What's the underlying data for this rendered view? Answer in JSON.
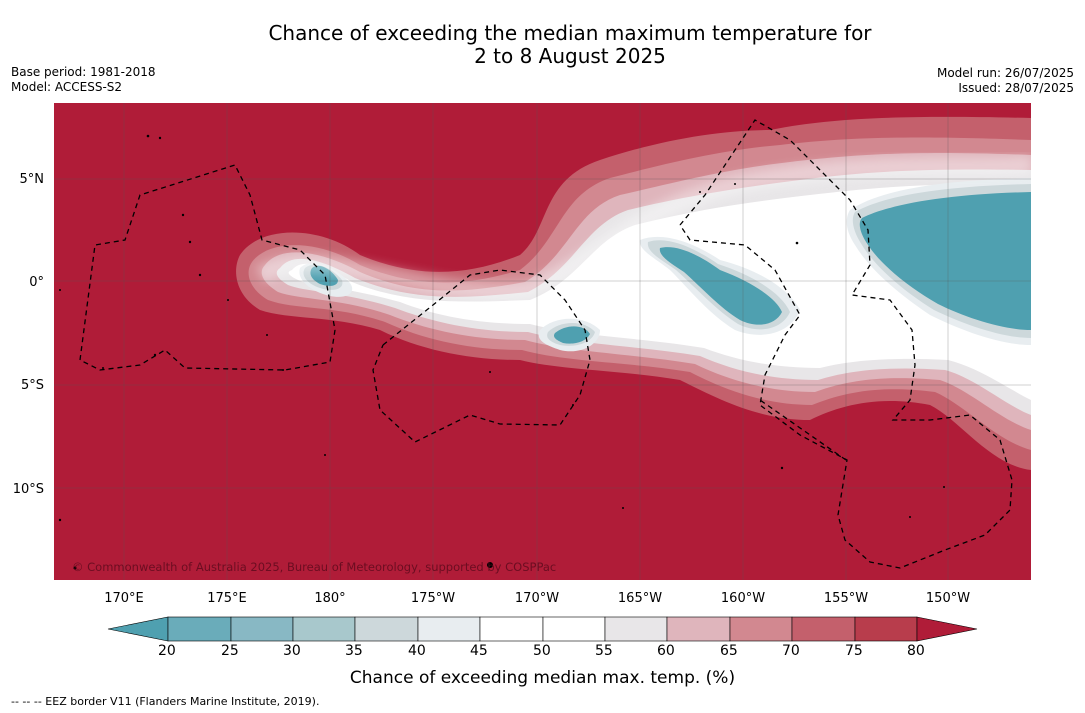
{
  "title": {
    "line1": "Chance of exceeding the median maximum temperature for",
    "line2": "2 to 8 August 2025"
  },
  "meta": {
    "base_period": "Base period: 1981-2018",
    "model": "Model: ACCESS-S2",
    "model_run": "Model run: 26/07/2025",
    "issued": "Issued: 28/07/2025"
  },
  "map": {
    "lat_labels": [
      "5°N",
      "0°",
      "5°S",
      "10°S"
    ],
    "lon_labels": [
      "170°E",
      "175°E",
      "180°",
      "175°W",
      "170°W",
      "165°W",
      "160°W",
      "155°W",
      "150°W"
    ],
    "copyright": "© Commonwealth of Australia 2025, Bureau of Meteorology, supported by COSPPac"
  },
  "colorbar": {
    "ticks": [
      "20",
      "25",
      "30",
      "35",
      "40",
      "45",
      "50",
      "55",
      "60",
      "65",
      "70",
      "75",
      "80"
    ],
    "title": "Chance of exceeding median max. temp. (%)",
    "colors": {
      "below20": "#4fa0b0",
      "c20_25": "#6aacba",
      "c25_30": "#88b8c4",
      "c30_35": "#a8c8cc",
      "c35_40": "#cdd8db",
      "c40_45": "#e8edf0",
      "c45_50": "#ffffff",
      "c50_55": "#ffffff",
      "c55_60": "#e8e6e8",
      "c60_65": "#dfb5bc",
      "c65_70": "#d28890",
      "c70_75": "#c4606c",
      "c75_80": "#b83d4c",
      "above80": "#b01c38"
    }
  },
  "footnote": "-- -- -- EEZ border V11 (Flanders Marine Institute, 2019)."
}
